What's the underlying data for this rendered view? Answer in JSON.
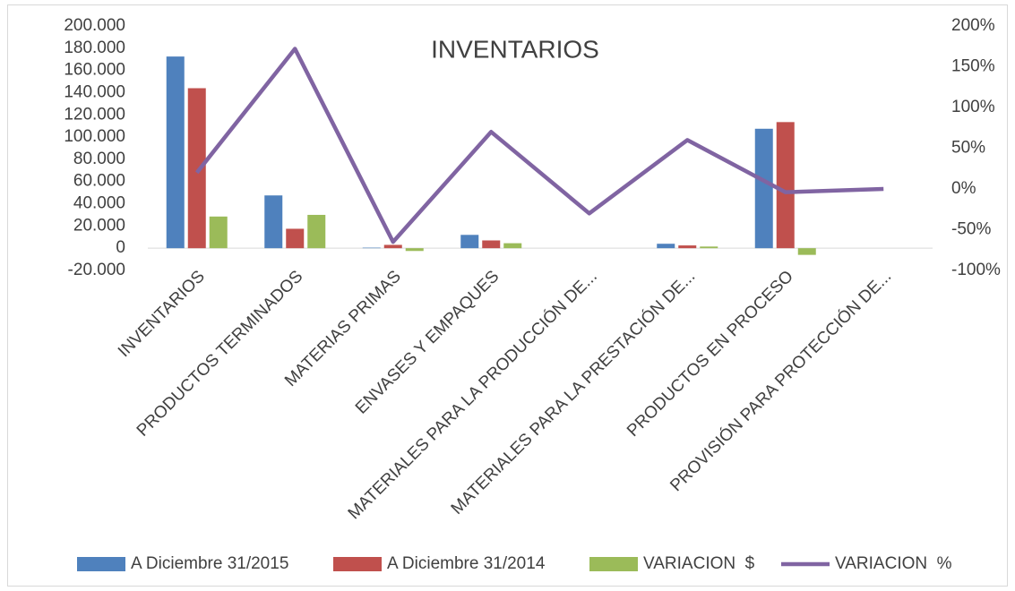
{
  "chart_data": {
    "type": "bar",
    "title": "INVENTARIOS",
    "categories": [
      "INVENTARIOS",
      "PRODUCTOS TERMINADOS",
      "MATERIAS PRIMAS",
      "ENVASES Y EMPAQUES",
      "MATERIALES PARA LA PRODUCCIÓN DE...",
      "MATERIALES PARA LA PRESTACIÓN DE...",
      "PRODUCTOS EN PROCESO",
      "PROVISIÓN PARA PROTECCIÓN DE..."
    ],
    "series": [
      {
        "name": "A Diciembre 31/2015",
        "color": "#4f81bd",
        "values": [
          172500,
          47500,
          500,
          12000,
          0,
          4000,
          107500,
          0
        ]
      },
      {
        "name": "A Diciembre 31/2014",
        "color": "#c0504d",
        "values": [
          144000,
          17500,
          3000,
          7000,
          0,
          2500,
          113500,
          0
        ]
      },
      {
        "name": "VARIACION  $",
        "color": "#9bbb59",
        "values": [
          28500,
          30000,
          -2500,
          4500,
          0,
          1500,
          -6000,
          0
        ]
      },
      {
        "name": "VARIACION  %",
        "color": "#8064a2",
        "type": "line",
        "axis": "y2",
        "values": [
          20,
          172,
          -65,
          70,
          -30,
          60,
          -4,
          0
        ]
      }
    ],
    "ylim": [
      -20000,
      200000
    ],
    "yticks": [
      {
        "value": -20000,
        "label": "-20.000"
      },
      0,
      {
        "value": 20000,
        "label": "20.000"
      },
      {
        "value": 40000,
        "label": "40.000"
      },
      {
        "value": 60000,
        "label": "60.000"
      },
      {
        "value": 80000,
        "label": "80.000"
      },
      {
        "value": 100000,
        "label": "100.000"
      },
      {
        "value": 120000,
        "label": "120.000"
      },
      {
        "value": 140000,
        "label": "140.000"
      },
      {
        "value": 160000,
        "label": "160.000"
      },
      {
        "value": 180000,
        "label": "180.000"
      },
      {
        "value": 200000,
        "label": "200.000"
      }
    ],
    "y2lim": [
      -100,
      200
    ],
    "y2ticks": [
      {
        "value": -100,
        "label": "-100%"
      },
      {
        "value": -50,
        "label": "-50%"
      },
      {
        "value": 0,
        "label": "0%"
      },
      {
        "value": 50,
        "label": "50%"
      },
      {
        "value": 100,
        "label": "100%"
      },
      {
        "value": 150,
        "label": "150%"
      },
      {
        "value": 200,
        "label": "200%"
      }
    ],
    "grid": false,
    "legend": "bottom"
  }
}
